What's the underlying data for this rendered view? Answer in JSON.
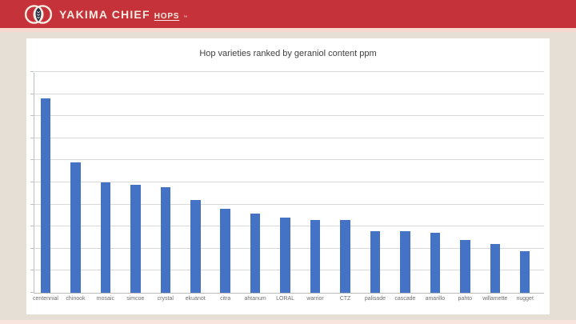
{
  "header": {
    "brand_name": "YAKIMA CHIEF",
    "brand_suffix": "HOPS",
    "trademark": "™",
    "bar_color": "#c5323a",
    "accent_strip_color": "#f6d8d1",
    "text_color": "#f4ede3",
    "logo_icon": "venn-circles-hop-cone-icon"
  },
  "slide": {
    "background_color": "#e6dfd5",
    "surface_color": "#ffffff"
  },
  "chart_data": {
    "type": "bar",
    "title": "Hop varieties ranked by geraniol content ppm",
    "categories": [
      "centennial",
      "chinook",
      "mosaic",
      "simcoe",
      "crystal",
      "ekuanot",
      "citra",
      "ahtanum",
      "LORAL",
      "warrior",
      "CTZ",
      "palisade",
      "cascade",
      "amarillo",
      "pahto",
      "willamette",
      "nugget"
    ],
    "values": [
      8.8,
      5.9,
      5.0,
      4.9,
      4.8,
      4.2,
      3.8,
      3.6,
      3.4,
      3.3,
      3.3,
      2.8,
      2.8,
      2.7,
      2.4,
      2.2,
      1.9
    ],
    "value_units": "gridline units (no y-axis tick labels visible; 10 unlabeled horizontal gridline intervals)",
    "xlabel": "",
    "ylabel": "",
    "ylim": [
      0,
      10
    ],
    "grid": "horizontal",
    "legend": "none",
    "bar_color": "#4472c4",
    "gridline_color": "#d9d9d9",
    "axis_color": "#bfbfbf",
    "title_color": "#404040",
    "label_color": "#6e6e6e"
  }
}
